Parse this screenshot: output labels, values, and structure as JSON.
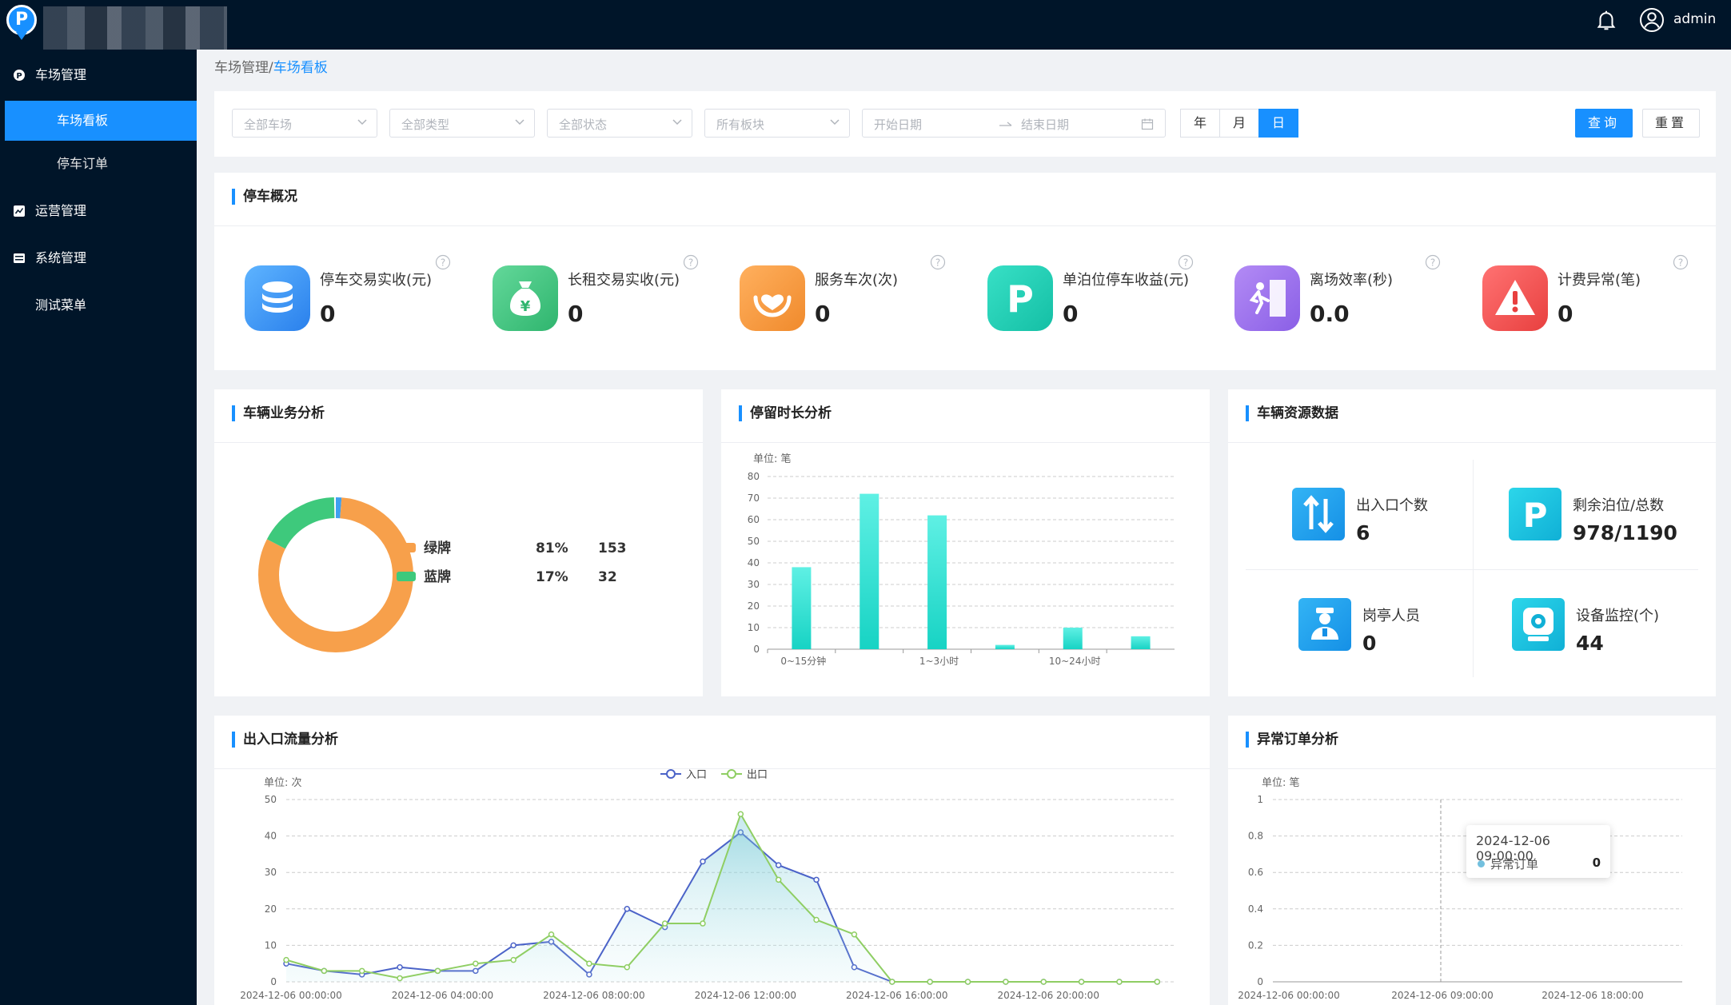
{
  "header": {
    "user": "admin"
  },
  "sidebar": {
    "items": [
      {
        "label": "车场管理"
      },
      {
        "label": "车场看板"
      },
      {
        "label": "停车订单"
      },
      {
        "label": "运营管理"
      },
      {
        "label": "系统管理"
      },
      {
        "label": "测试菜单"
      }
    ]
  },
  "breadcrumb": {
    "parent": "车场管理",
    "sep": "/",
    "current": "车场看板"
  },
  "filters": {
    "lot": "全部车场",
    "type": "全部类型",
    "status": "全部状态",
    "block": "所有板块",
    "start_date": "开始日期",
    "end_date": "结束日期",
    "period": [
      "年",
      "月",
      "日"
    ],
    "period_selected": "日",
    "query": "查询",
    "reset": "重置"
  },
  "overview": {
    "title": "停车概况",
    "cards": [
      {
        "label": "停车交易实收(元)",
        "value": "0",
        "color": "#e8f1fd",
        "icon": "database-icon"
      },
      {
        "label": "长租交易实收(元)",
        "value": "0",
        "color": "#e7f6ee",
        "icon": "money-bag-icon"
      },
      {
        "label": "服务车次(次)",
        "value": "0",
        "color": "#fdf1e5",
        "icon": "heart-hands-icon"
      },
      {
        "label": "单泊位停车收益(元)",
        "value": "0",
        "color": "#e3f8f4",
        "icon": "parking-icon"
      },
      {
        "label": "离场效率(秒)",
        "value": "0.0",
        "color": "#f0ebfb",
        "icon": "exit-icon"
      },
      {
        "label": "计费异常(笔)",
        "value": "0",
        "color": "#fdeeee",
        "icon": "warning-icon"
      }
    ]
  },
  "vehicle_business": {
    "title": "车辆业务分析",
    "chart_data": {
      "type": "pie",
      "donut": true,
      "series": [
        {
          "name": "绿牌",
          "percent": "81%",
          "count": 153,
          "color": "#f7a04b"
        },
        {
          "name": "蓝牌",
          "percent": "17%",
          "count": 32,
          "color": "#3ec97c"
        },
        {
          "name": "",
          "count": 3,
          "color": "#3fa0f0"
        }
      ]
    }
  },
  "dwell_time": {
    "title": "停留时长分析",
    "unit": "单位: 笔",
    "chart_data": {
      "type": "bar",
      "categories": [
        "0~15分钟",
        "",
        "1~3小时",
        "",
        "10~24小时",
        ""
      ],
      "values": [
        38,
        72,
        62,
        2,
        10,
        6
      ],
      "ylim": [
        0,
        80
      ],
      "yticks": [
        0,
        10,
        20,
        30,
        40,
        50,
        60,
        70,
        80
      ],
      "bar_color": "#17d3c4"
    }
  },
  "resources": {
    "title": "车辆资源数据",
    "items": [
      {
        "label": "出入口个数",
        "value": "6",
        "color": "#1aa5ee",
        "icon": "entrance-arrows-icon"
      },
      {
        "label": "剩余泊位/总数",
        "value": "978/1190",
        "color": "#17c0df",
        "icon": "parking-icon"
      },
      {
        "label": "岗亭人员",
        "value": "0",
        "color": "#1aa5ee",
        "icon": "staff-icon"
      },
      {
        "label": "设备监控(个)",
        "value": "44",
        "color": "#17c0df",
        "icon": "camera-icon"
      }
    ]
  },
  "flow": {
    "title": "出入口流量分析",
    "unit": "单位: 次",
    "chart_data": {
      "type": "line",
      "x": [
        "2024-12-06 00:00:00",
        "",
        "",
        "",
        "2024-12-06 04:00:00",
        "",
        "",
        "",
        "2024-12-06 08:00:00",
        "",
        "",
        "",
        "2024-12-06 12:00:00",
        "",
        "",
        "",
        "2024-12-06 16:00:00",
        "",
        "",
        "",
        "2024-12-06 20:00:00",
        "",
        "",
        ""
      ],
      "xlabels": [
        "2024-12-06 00:00:00",
        "2024-12-06 04:00:00",
        "2024-12-06 08:00:00",
        "2024-12-06 12:00:00",
        "2024-12-06 16:00:00",
        "2024-12-06 20:00:00"
      ],
      "ylim": [
        0,
        50
      ],
      "yticks": [
        0,
        10,
        20,
        30,
        40,
        50
      ],
      "series": [
        {
          "name": "入口",
          "color": "#4b63c8",
          "values": [
            5,
            3,
            2,
            4,
            3,
            3,
            10,
            11,
            2,
            20,
            15,
            33,
            41,
            32,
            28,
            4,
            0,
            0,
            0,
            0,
            0,
            0,
            0,
            0
          ]
        },
        {
          "name": "出口",
          "color": "#8fce63",
          "values": [
            6,
            3,
            3,
            1,
            3,
            5,
            6,
            13,
            5,
            4,
            16,
            16,
            46,
            28,
            17,
            13,
            0,
            0,
            0,
            0,
            0,
            0,
            0,
            0
          ]
        }
      ]
    }
  },
  "abnormal": {
    "title": "异常订单分析",
    "unit": "单位: 笔",
    "chart_data": {
      "type": "line",
      "xlabels": [
        "2024-12-06 00:00:00",
        "2024-12-06 09:00:00",
        "2024-12-06 18:00:00"
      ],
      "ylim": [
        0,
        1
      ],
      "yticks": [
        "0",
        "0.2",
        "0.4",
        "0.6",
        "0.8",
        "1"
      ],
      "series": [
        {
          "name": "异常订单",
          "color": "#73c0de",
          "values": [
            0
          ]
        }
      ]
    },
    "tooltip": {
      "time": "2024-12-06 09:00:00",
      "name": "异常订单",
      "value": "0"
    }
  }
}
